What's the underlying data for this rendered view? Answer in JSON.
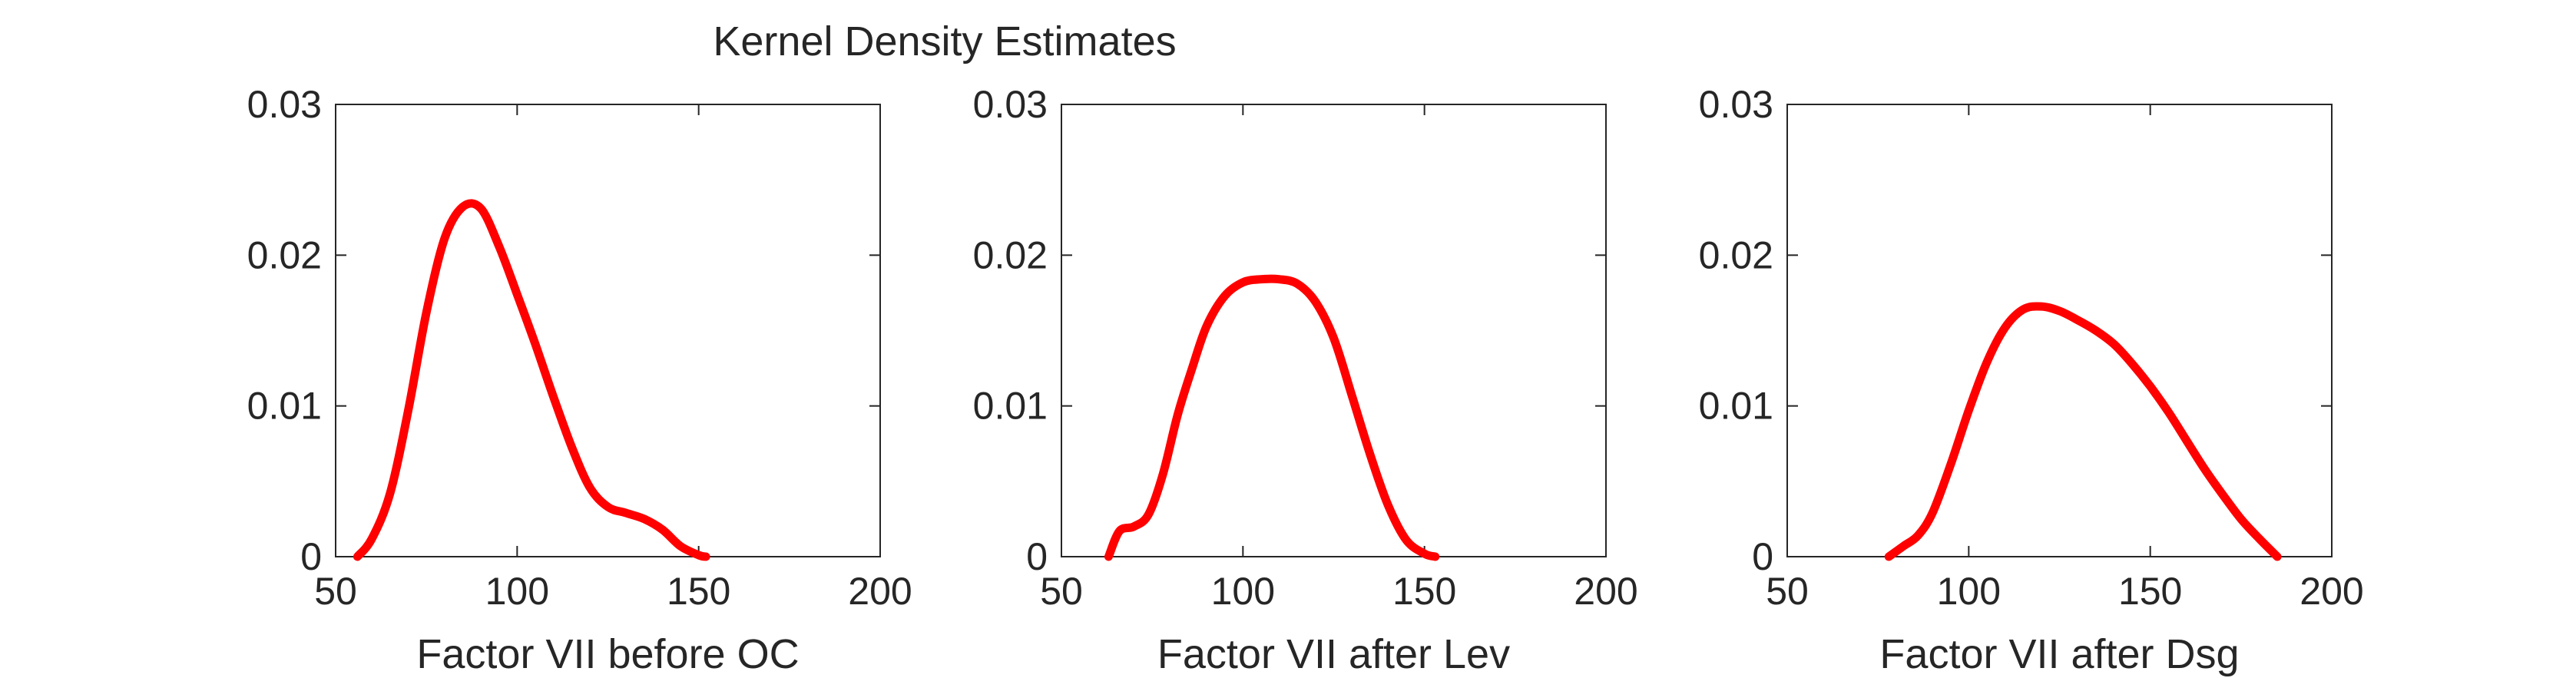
{
  "figure": {
    "title": "Kernel Density Estimates",
    "line_color": "#ff0000",
    "axis_color": "#262626"
  },
  "chart_data": [
    {
      "type": "line",
      "title": "",
      "xlabel": "Factor VII before OC",
      "ylabel": "",
      "xlim": [
        50,
        200
      ],
      "ylim": [
        0,
        0.03
      ],
      "xticks": [
        50,
        100,
        150,
        200
      ],
      "xtick_labels": [
        "50",
        "100",
        "150",
        "200"
      ],
      "yticks": [
        0,
        0.01,
        0.02,
        0.03
      ],
      "ytick_labels": [
        "0",
        "0.01",
        "0.02",
        "0.03"
      ],
      "grid": false,
      "series": [
        {
          "x": [
            56,
            60,
            65,
            70,
            75,
            80,
            85,
            90,
            95,
            100,
            105,
            110,
            115,
            120,
            125,
            130,
            135,
            140,
            145,
            150,
            152
          ],
          "y": [
            0.0,
            0.0012,
            0.0042,
            0.0097,
            0.0162,
            0.0211,
            0.0232,
            0.0231,
            0.0206,
            0.0174,
            0.0141,
            0.0106,
            0.0073,
            0.0046,
            0.0033,
            0.0029,
            0.0025,
            0.0018,
            0.0007,
            0.0001,
            0.0
          ]
        }
      ]
    },
    {
      "type": "line",
      "title": "",
      "xlabel": "Factor VII after Lev",
      "ylabel": "",
      "xlim": [
        50,
        200
      ],
      "ylim": [
        0,
        0.03
      ],
      "xticks": [
        50,
        100,
        150,
        200
      ],
      "xtick_labels": [
        "50",
        "100",
        "150",
        "200"
      ],
      "yticks": [
        0,
        0.01,
        0.02,
        0.03
      ],
      "ytick_labels": [
        "0",
        "0.01",
        "0.02",
        "0.03"
      ],
      "grid": false,
      "series": [
        {
          "x": [
            63,
            66,
            70,
            74,
            78,
            82,
            86,
            90,
            95,
            100,
            105,
            110,
            115,
            120,
            125,
            130,
            135,
            140,
            145,
            150,
            153
          ],
          "y": [
            0.0,
            0.0017,
            0.002,
            0.0028,
            0.0055,
            0.0094,
            0.0125,
            0.0153,
            0.0173,
            0.0182,
            0.0184,
            0.0184,
            0.0181,
            0.0169,
            0.0145,
            0.0107,
            0.0068,
            0.0034,
            0.0011,
            0.0002,
            0.0
          ]
        }
      ]
    },
    {
      "type": "line",
      "title": "",
      "xlabel": "Factor VII after Dsg",
      "ylabel": "",
      "xlim": [
        50,
        200
      ],
      "ylim": [
        0,
        0.03
      ],
      "xticks": [
        50,
        100,
        150,
        200
      ],
      "xtick_labels": [
        "50",
        "100",
        "150",
        "200"
      ],
      "yticks": [
        0,
        0.01,
        0.02,
        0.03
      ],
      "ytick_labels": [
        "0",
        "0.01",
        "0.02",
        "0.03"
      ],
      "grid": false,
      "series": [
        {
          "x": [
            78,
            82,
            86,
            90,
            95,
            100,
            105,
            110,
            115,
            120,
            125,
            130,
            135,
            140,
            145,
            150,
            155,
            160,
            165,
            170,
            175,
            180,
            185
          ],
          "y": [
            0.0,
            0.0007,
            0.0014,
            0.0029,
            0.0061,
            0.0097,
            0.0129,
            0.0152,
            0.0164,
            0.0166,
            0.0163,
            0.0157,
            0.015,
            0.0141,
            0.0128,
            0.0113,
            0.0096,
            0.0077,
            0.0058,
            0.0041,
            0.0025,
            0.0012,
            0.0
          ]
        }
      ]
    }
  ]
}
